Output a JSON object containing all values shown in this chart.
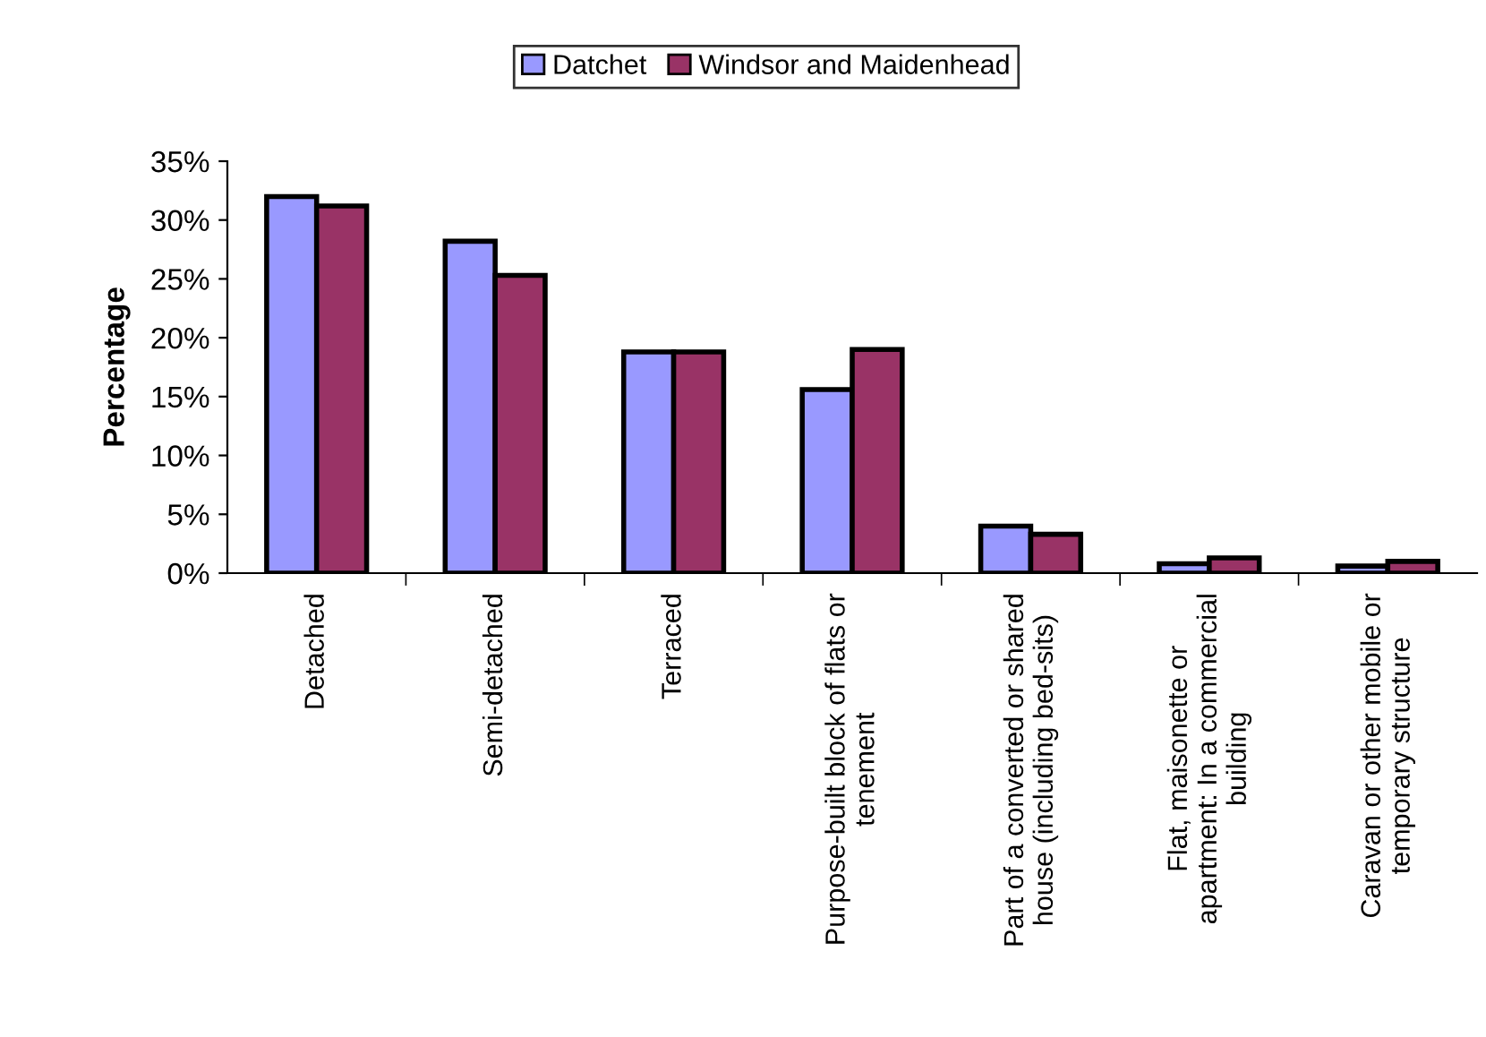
{
  "chart_data": {
    "type": "bar",
    "ylabel": "Percentage",
    "categories": [
      "Detached",
      "Semi-detached",
      "Terraced",
      "Purpose-built block of flats or\ntenement",
      "Part of a converted or shared\nhouse (including bed-sits)",
      "Flat, maisonette or\napartment: In a commercial\nbuilding",
      "Caravan or other mobile or\ntemporary structure"
    ],
    "series": [
      {
        "name": "Datchet",
        "color": "#9999ff",
        "values": [
          32.0,
          28.2,
          18.8,
          15.6,
          4.0,
          0.8,
          0.6
        ]
      },
      {
        "name": "Windsor and Maidenhead",
        "color": "#993366",
        "values": [
          31.2,
          25.3,
          18.8,
          19.0,
          3.3,
          1.3,
          1.0
        ]
      }
    ],
    "ylim": [
      0,
      35
    ],
    "yticks": [
      {
        "value": 0,
        "label": "0%"
      },
      {
        "value": 5,
        "label": "5%"
      },
      {
        "value": 10,
        "label": "10%"
      },
      {
        "value": 15,
        "label": "15%"
      },
      {
        "value": 20,
        "label": "20%"
      },
      {
        "value": 25,
        "label": "25%"
      },
      {
        "value": 30,
        "label": "30%"
      },
      {
        "value": 35,
        "label": "35%"
      }
    ],
    "grid": false,
    "legend": "top"
  }
}
